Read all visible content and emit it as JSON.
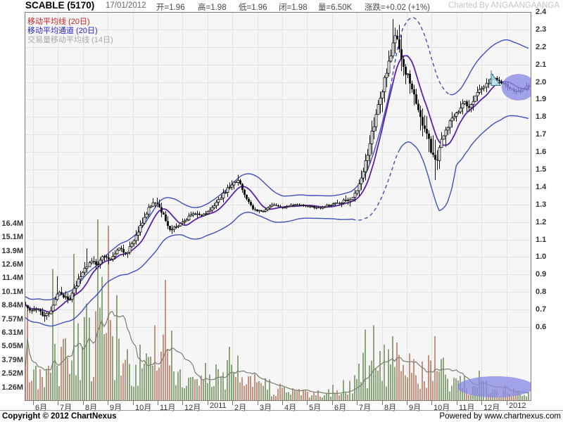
{
  "header": {
    "title": "SCABLE (5170)",
    "date": "17/01/2012",
    "open": "开=1.96",
    "high": "高=1.98",
    "low": "低=1.96",
    "close": "闭=1.98",
    "volume": "量=6.50K",
    "change": "涨跌=+0.02 (+1%)",
    "charted_by": "Charted By ANGAANGAANGA"
  },
  "legend": {
    "items": [
      {
        "label": "移动平均线 (20日)",
        "color": "#cc2222"
      },
      {
        "label": "移动平均通道 (20日)",
        "color": "#2a2ac8"
      },
      {
        "label": "交易量移动平均线 (14日)",
        "color": "#a8a8a8"
      }
    ]
  },
  "footer": {
    "copyright": "Copyright © 2012 ChartNexus",
    "powered_by": "Powered by www.chartnexus.com"
  },
  "chart_data": {
    "type": "candlestick",
    "title": "SCABLE (5170) daily price with 20-day MA, 20-day MA channel and volume",
    "x_labels": [
      "6月",
      "7月",
      "8月",
      "9月",
      "10月",
      "11月",
      "12月",
      "2011",
      "2月",
      "3月",
      "4月",
      "5月",
      "6月",
      "7月",
      "8月",
      "9月",
      "10月",
      "11月",
      "12月",
      "2012"
    ],
    "price_axis": {
      "min": 0.6,
      "max": 2.4,
      "step": 0.1,
      "labels": [
        "2.4",
        "2.3",
        "2.2",
        "2.1",
        "2.0",
        "1.9",
        "1.8",
        "1.7",
        "1.6",
        "1.5",
        "1.4",
        "1.3",
        "1.2",
        "1.1",
        "1.0",
        "0.9",
        "0.8",
        "0.7",
        "0.6"
      ]
    },
    "volume_axis": {
      "labels": [
        {
          "text": "16.4M",
          "value": 16.4
        },
        {
          "text": "15.1M",
          "value": 15.14
        },
        {
          "text": "13.9M",
          "value": 13.88
        },
        {
          "text": "12.6M",
          "value": 12.62
        },
        {
          "text": "11.4M",
          "value": 11.36
        },
        {
          "text": "10.1M",
          "value": 10.09
        },
        {
          "text": "8.84M",
          "value": 8.84
        },
        {
          "text": "7.57M",
          "value": 7.57
        },
        {
          "text": "6.31M",
          "value": 6.31
        },
        {
          "text": "5.05M",
          "value": 5.05
        },
        {
          "text": "3.79M",
          "value": 3.79
        },
        {
          "text": "2.52M",
          "value": 2.52
        },
        {
          "text": "1.26M",
          "value": 1.26
        }
      ]
    },
    "close_anchors": [
      [
        -0.31,
        0.72
      ],
      [
        -0.1,
        0.69
      ],
      [
        0.15,
        0.7
      ],
      [
        0.45,
        0.66
      ],
      [
        0.75,
        0.7
      ],
      [
        1.0,
        0.8
      ],
      [
        1.15,
        0.78
      ],
      [
        1.45,
        0.76
      ],
      [
        1.8,
        0.86
      ],
      [
        2.1,
        0.93
      ],
      [
        2.3,
        0.99
      ],
      [
        2.55,
        0.96
      ],
      [
        2.8,
        1.0
      ],
      [
        3.1,
        0.99
      ],
      [
        3.45,
        1.05
      ],
      [
        3.7,
        1.02
      ],
      [
        3.95,
        1.07
      ],
      [
        4.25,
        1.16
      ],
      [
        4.6,
        1.27
      ],
      [
        4.9,
        1.32
      ],
      [
        5.15,
        1.26
      ],
      [
        5.45,
        1.16
      ],
      [
        5.75,
        1.17
      ],
      [
        6.05,
        1.2
      ],
      [
        6.4,
        1.25
      ],
      [
        6.8,
        1.24
      ],
      [
        7.1,
        1.27
      ],
      [
        7.5,
        1.34
      ],
      [
        7.9,
        1.41
      ],
      [
        8.2,
        1.44
      ],
      [
        8.5,
        1.35
      ],
      [
        8.8,
        1.27
      ],
      [
        9.2,
        1.26
      ],
      [
        9.6,
        1.3
      ],
      [
        10.0,
        1.28
      ],
      [
        10.5,
        1.3
      ],
      [
        11.0,
        1.29
      ],
      [
        11.5,
        1.28
      ],
      [
        12.0,
        1.3
      ],
      [
        12.5,
        1.32
      ],
      [
        12.85,
        1.34
      ],
      [
        13.1,
        1.42
      ],
      [
        13.35,
        1.56
      ],
      [
        13.6,
        1.72
      ],
      [
        13.85,
        1.88
      ],
      [
        14.1,
        2.02
      ],
      [
        14.35,
        2.18
      ],
      [
        14.55,
        2.26
      ],
      [
        14.75,
        2.14
      ],
      [
        15.0,
        2.04
      ],
      [
        15.3,
        1.92
      ],
      [
        15.6,
        1.76
      ],
      [
        15.9,
        1.66
      ],
      [
        16.15,
        1.52
      ],
      [
        16.4,
        1.66
      ],
      [
        16.7,
        1.76
      ],
      [
        17.0,
        1.82
      ],
      [
        17.3,
        1.88
      ],
      [
        17.55,
        1.86
      ],
      [
        17.8,
        1.93
      ],
      [
        18.1,
        1.98
      ],
      [
        18.45,
        2.02
      ],
      [
        18.75,
        2.0
      ],
      [
        19.05,
        1.97
      ],
      [
        19.35,
        1.94
      ],
      [
        19.6,
        1.95
      ],
      [
        19.88,
        1.98
      ]
    ],
    "wick_anchors": [
      [
        -0.3,
        0.012
      ],
      [
        1,
        0.02
      ],
      [
        2,
        0.025
      ],
      [
        3,
        0.02
      ],
      [
        4,
        0.022
      ],
      [
        5,
        0.022
      ],
      [
        6,
        0.015
      ],
      [
        7,
        0.015
      ],
      [
        8,
        0.02
      ],
      [
        9,
        0.01
      ],
      [
        10,
        0.007
      ],
      [
        11,
        0.007
      ],
      [
        12,
        0.009
      ],
      [
        13,
        0.03
      ],
      [
        13.8,
        0.05
      ],
      [
        14.4,
        0.065
      ],
      [
        15,
        0.05
      ],
      [
        15.8,
        0.055
      ],
      [
        16.2,
        0.08
      ],
      [
        16.6,
        0.04
      ],
      [
        17,
        0.028
      ],
      [
        18,
        0.022
      ],
      [
        19,
        0.018
      ],
      [
        19.88,
        0.015
      ]
    ],
    "forced_highs": [
      [
        1.0,
        0.89
      ],
      [
        2.2,
        1.05
      ],
      [
        8.2,
        1.47
      ],
      [
        14.42,
        2.36
      ],
      [
        14.55,
        2.31
      ]
    ],
    "forced_lows": [
      [
        0.45,
        0.63
      ],
      [
        16.15,
        1.44
      ]
    ],
    "band_upper_width_anchors": [
      [
        -0.3,
        0.05
      ],
      [
        1,
        0.07
      ],
      [
        2,
        0.08
      ],
      [
        3,
        0.07
      ],
      [
        4,
        0.09
      ],
      [
        5,
        0.12
      ],
      [
        6,
        0.08
      ],
      [
        7,
        0.08
      ],
      [
        8,
        0.1
      ],
      [
        9,
        0.1
      ],
      [
        10,
        0.07
      ],
      [
        11,
        0.06
      ],
      [
        12,
        0.06
      ],
      [
        12.8,
        0.07
      ],
      [
        13.3,
        0.1
      ],
      [
        13.8,
        0.15
      ],
      [
        14.3,
        0.18
      ],
      [
        14.8,
        0.28
      ],
      [
        15.3,
        0.28
      ],
      [
        15.8,
        0.26
      ],
      [
        16.3,
        0.24
      ],
      [
        16.8,
        0.24
      ],
      [
        17.3,
        0.26
      ],
      [
        17.8,
        0.28
      ],
      [
        18.3,
        0.28
      ],
      [
        18.8,
        0.27
      ],
      [
        19.3,
        0.24
      ],
      [
        19.88,
        0.22
      ]
    ],
    "band_lower_width_anchors": [
      [
        -0.3,
        0.07
      ],
      [
        1,
        0.09
      ],
      [
        2,
        0.1
      ],
      [
        3,
        0.09
      ],
      [
        4,
        0.11
      ],
      [
        5,
        0.14
      ],
      [
        6,
        0.1
      ],
      [
        7,
        0.1
      ],
      [
        8,
        0.12
      ],
      [
        9,
        0.12
      ],
      [
        10,
        0.08
      ],
      [
        11,
        0.07
      ],
      [
        12,
        0.07
      ],
      [
        12.8,
        0.09
      ],
      [
        13.3,
        0.14
      ],
      [
        13.8,
        0.22
      ],
      [
        14.3,
        0.3
      ],
      [
        14.8,
        0.38
      ],
      [
        15.3,
        0.45
      ],
      [
        15.8,
        0.48
      ],
      [
        16.3,
        0.5
      ],
      [
        16.6,
        0.4
      ],
      [
        16.8,
        0.3
      ],
      [
        17.0,
        0.16
      ],
      [
        17.3,
        0.15
      ],
      [
        17.8,
        0.16
      ],
      [
        18.3,
        0.17
      ],
      [
        18.8,
        0.18
      ],
      [
        19.3,
        0.18
      ],
      [
        19.88,
        0.18
      ]
    ],
    "band_dash_ranges": {
      "upper": [
        [
          14.35,
          16.75
        ]
      ],
      "lower": [
        [
          12.85,
          14.75
        ]
      ]
    },
    "volume_base_anchors": [
      [
        -0.3,
        3.2
      ],
      [
        0.3,
        2.2
      ],
      [
        0.9,
        3.5
      ],
      [
        1.6,
        4.5
      ],
      [
        2.3,
        5.0
      ],
      [
        2.9,
        6.0
      ],
      [
        3.4,
        4.0
      ],
      [
        4.0,
        2.5
      ],
      [
        4.7,
        3.0
      ],
      [
        5.4,
        4.0
      ],
      [
        5.9,
        2.5
      ],
      [
        6.5,
        1.5
      ],
      [
        7.3,
        2.2
      ],
      [
        8.1,
        2.5
      ],
      [
        8.8,
        1.8
      ],
      [
        9.5,
        1.2
      ],
      [
        10.3,
        0.8
      ],
      [
        11.2,
        0.7
      ],
      [
        12.1,
        1.0
      ],
      [
        12.8,
        1.6
      ],
      [
        13.4,
        3.2
      ],
      [
        14.1,
        3.6
      ],
      [
        14.7,
        3.2
      ],
      [
        15.4,
        2.2
      ],
      [
        16.1,
        2.8
      ],
      [
        16.8,
        1.8
      ],
      [
        17.5,
        1.3
      ],
      [
        18.2,
        1.1
      ],
      [
        18.9,
        0.9
      ],
      [
        19.5,
        0.7
      ],
      [
        19.88,
        0.6
      ]
    ],
    "volume_spikes": [
      [
        -0.25,
        8.4
      ],
      [
        0.82,
        12.2
      ],
      [
        1.68,
        13.6
      ],
      [
        1.85,
        7.2
      ],
      [
        2.18,
        9.0
      ],
      [
        2.62,
        16.8
      ],
      [
        2.78,
        11.5
      ],
      [
        2.98,
        16.2
      ],
      [
        3.12,
        7.5
      ],
      [
        3.38,
        9.8
      ],
      [
        4.28,
        5.2
      ],
      [
        4.88,
        7.0
      ],
      [
        5.28,
        11.2
      ],
      [
        5.6,
        6.5
      ],
      [
        6.9,
        3.5
      ],
      [
        7.9,
        5.0
      ],
      [
        8.25,
        4.2
      ],
      [
        13.32,
        6.6
      ],
      [
        13.68,
        7.0
      ],
      [
        14.12,
        5.2
      ],
      [
        14.4,
        6.0
      ],
      [
        14.62,
        5.4
      ],
      [
        15.1,
        4.4
      ],
      [
        16.15,
        6.0
      ],
      [
        16.5,
        4.0
      ],
      [
        17.9,
        2.8
      ]
    ],
    "annotations": {
      "highlight_ellipse_price": {
        "m": 19.49,
        "price": 1.97,
        "rm": 0.68,
        "rprice": 0.076
      },
      "highlight_ellipse_volume": {
        "m": 18.56,
        "volume": 1.3,
        "rm": 1.53,
        "rvol": 0.98
      },
      "flag_marker": {
        "m": 18.39,
        "price_top": 2.05,
        "price_base": 1.98,
        "width_m": 0.37
      }
    },
    "colors": {
      "plot_bg": "#f6f6f6",
      "grid": "#e4e4e4",
      "border": "#7b7b7b",
      "candle": "#141414",
      "volume_up": "#8ba57d",
      "volume_down": "#c99080",
      "volume_ma": "#75806b",
      "ma": "#5c22a8",
      "band": "#3f51c1",
      "highlight": "#8a8ae4",
      "marker_fill": "#b9e0e4",
      "marker_stroke": "#2e7f96"
    }
  }
}
